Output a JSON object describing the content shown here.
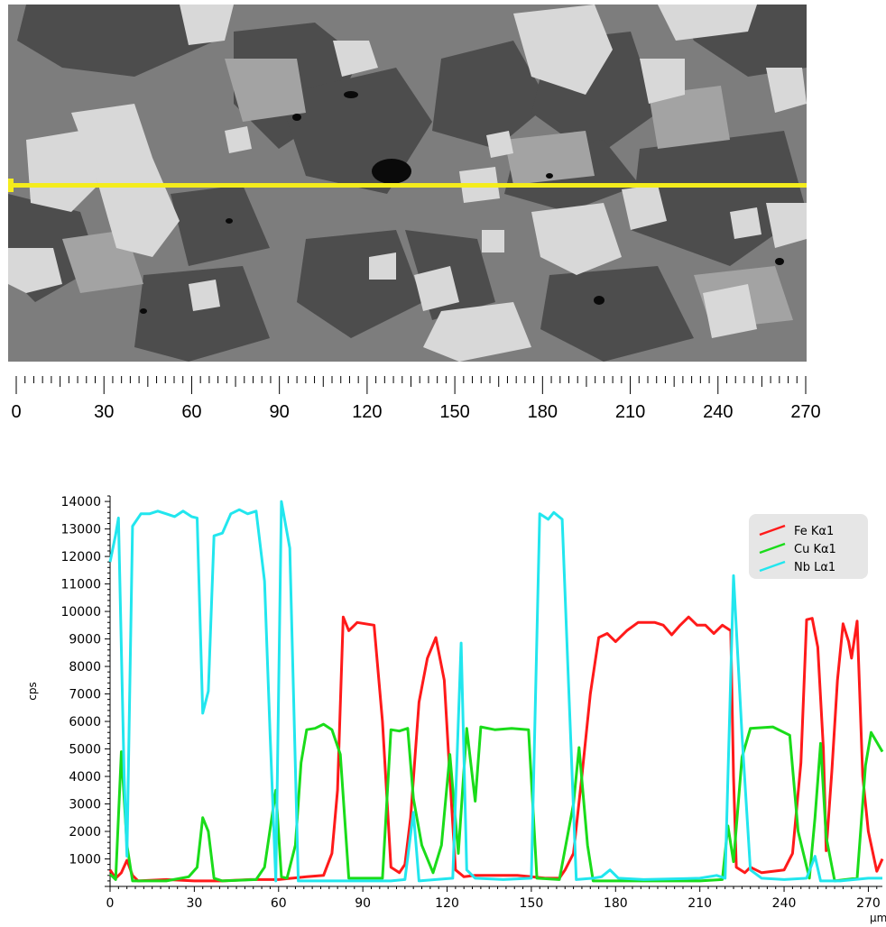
{
  "sem_image": {
    "scan_line_color": "#f4ec1c"
  },
  "scale_bar": {
    "ticks": [
      "0",
      "30",
      "60",
      "90",
      "120",
      "150",
      "180",
      "210",
      "240",
      "270"
    ]
  },
  "chart_data": {
    "type": "line",
    "xlabel": "µm",
    "ylabel": "cps",
    "xlim": [
      0,
      275
    ],
    "ylim": [
      0,
      14200
    ],
    "x_ticks": [
      0,
      30,
      60,
      90,
      120,
      150,
      180,
      210,
      240,
      270
    ],
    "y_ticks": [
      1000,
      2000,
      3000,
      4000,
      5000,
      6000,
      7000,
      8000,
      9000,
      10000,
      11000,
      12000,
      13000,
      14000
    ],
    "grid": false,
    "legend_position": "top-right",
    "series": [
      {
        "name": "Fe Kα1",
        "color": "#ff1a1a",
        "points": [
          [
            0,
            600
          ],
          [
            2,
            300
          ],
          [
            4,
            500
          ],
          [
            6,
            950
          ],
          [
            8,
            400
          ],
          [
            10,
            200
          ],
          [
            20,
            250
          ],
          [
            30,
            200
          ],
          [
            40,
            200
          ],
          [
            50,
            250
          ],
          [
            60,
            250
          ],
          [
            70,
            350
          ],
          [
            76,
            400
          ],
          [
            79,
            1200
          ],
          [
            81,
            3500
          ],
          [
            83,
            9800
          ],
          [
            85,
            9300
          ],
          [
            88,
            9600
          ],
          [
            94,
            9500
          ],
          [
            97,
            6000
          ],
          [
            100,
            700
          ],
          [
            103,
            500
          ],
          [
            105,
            800
          ],
          [
            107,
            2500
          ],
          [
            110,
            6700
          ],
          [
            113,
            8300
          ],
          [
            116,
            9050
          ],
          [
            119,
            7500
          ],
          [
            121,
            4000
          ],
          [
            123,
            600
          ],
          [
            126,
            350
          ],
          [
            130,
            400
          ],
          [
            145,
            400
          ],
          [
            150,
            350
          ],
          [
            155,
            300
          ],
          [
            160,
            300
          ],
          [
            162,
            600
          ],
          [
            165,
            1200
          ],
          [
            168,
            4000
          ],
          [
            171,
            7000
          ],
          [
            174,
            9050
          ],
          [
            177,
            9200
          ],
          [
            180,
            8900
          ],
          [
            184,
            9300
          ],
          [
            188,
            9600
          ],
          [
            194,
            9600
          ],
          [
            197,
            9500
          ],
          [
            200,
            9150
          ],
          [
            203,
            9500
          ],
          [
            206,
            9800
          ],
          [
            209,
            9500
          ],
          [
            212,
            9500
          ],
          [
            215,
            9200
          ],
          [
            218,
            9500
          ],
          [
            221,
            9300
          ],
          [
            222,
            4000
          ],
          [
            223,
            700
          ],
          [
            226,
            500
          ],
          [
            228,
            700
          ],
          [
            232,
            500
          ],
          [
            240,
            600
          ],
          [
            243,
            1200
          ],
          [
            246,
            4500
          ],
          [
            248,
            9700
          ],
          [
            250,
            9750
          ],
          [
            252,
            8700
          ],
          [
            254,
            5000
          ],
          [
            255,
            1300
          ],
          [
            257,
            4200
          ],
          [
            259,
            7500
          ],
          [
            261,
            9550
          ],
          [
            263,
            8900
          ],
          [
            264,
            8300
          ],
          [
            266,
            9650
          ],
          [
            268,
            4000
          ],
          [
            270,
            2000
          ],
          [
            273,
            550
          ],
          [
            275,
            1000
          ]
        ]
      },
      {
        "name": "Cu Kα1",
        "color": "#1adc1a",
        "points": [
          [
            0,
            450
          ],
          [
            2,
            250
          ],
          [
            4,
            4900
          ],
          [
            6,
            1500
          ],
          [
            8,
            200
          ],
          [
            20,
            200
          ],
          [
            28,
            350
          ],
          [
            31,
            700
          ],
          [
            33,
            2500
          ],
          [
            35,
            2000
          ],
          [
            37,
            300
          ],
          [
            40,
            200
          ],
          [
            52,
            250
          ],
          [
            55,
            700
          ],
          [
            59,
            3500
          ],
          [
            61,
            350
          ],
          [
            63,
            300
          ],
          [
            66,
            1500
          ],
          [
            68,
            4500
          ],
          [
            70,
            5700
          ],
          [
            73,
            5750
          ],
          [
            76,
            5900
          ],
          [
            79,
            5700
          ],
          [
            82,
            4800
          ],
          [
            85,
            300
          ],
          [
            97,
            300
          ],
          [
            100,
            5700
          ],
          [
            103,
            5650
          ],
          [
            106,
            5750
          ],
          [
            108,
            3200
          ],
          [
            111,
            1500
          ],
          [
            115,
            500
          ],
          [
            118,
            1500
          ],
          [
            121,
            4800
          ],
          [
            124,
            1200
          ],
          [
            127,
            5750
          ],
          [
            130,
            3100
          ],
          [
            132,
            5800
          ],
          [
            137,
            5700
          ],
          [
            143,
            5750
          ],
          [
            149,
            5700
          ],
          [
            152,
            300
          ],
          [
            160,
            250
          ],
          [
            165,
            3000
          ],
          [
            167,
            5050
          ],
          [
            170,
            1500
          ],
          [
            172,
            200
          ],
          [
            180,
            200
          ],
          [
            210,
            200
          ],
          [
            218,
            250
          ],
          [
            220,
            2200
          ],
          [
            222,
            900
          ],
          [
            225,
            4700
          ],
          [
            228,
            5750
          ],
          [
            236,
            5800
          ],
          [
            242,
            5500
          ],
          [
            245,
            2000
          ],
          [
            249,
            300
          ],
          [
            251,
            2500
          ],
          [
            253,
            5200
          ],
          [
            255,
            1800
          ],
          [
            258,
            200
          ],
          [
            266,
            300
          ],
          [
            269,
            4400
          ],
          [
            271,
            5600
          ],
          [
            275,
            4900
          ]
        ]
      },
      {
        "name": "Nb Lα1",
        "color": "#22e6ee",
        "points": [
          [
            0,
            11800
          ],
          [
            2,
            12800
          ],
          [
            3,
            13400
          ],
          [
            5,
            4000
          ],
          [
            6,
            1100
          ],
          [
            8,
            13100
          ],
          [
            11,
            13550
          ],
          [
            14,
            13550
          ],
          [
            17,
            13650
          ],
          [
            20,
            13550
          ],
          [
            23,
            13450
          ],
          [
            26,
            13650
          ],
          [
            29,
            13450
          ],
          [
            31,
            13400
          ],
          [
            33,
            6300
          ],
          [
            35,
            7100
          ],
          [
            37,
            12750
          ],
          [
            40,
            12850
          ],
          [
            43,
            13550
          ],
          [
            46,
            13700
          ],
          [
            49,
            13550
          ],
          [
            52,
            13650
          ],
          [
            55,
            11100
          ],
          [
            57,
            5500
          ],
          [
            59,
            200
          ],
          [
            61,
            14000
          ],
          [
            64,
            12300
          ],
          [
            67,
            200
          ],
          [
            70,
            200
          ],
          [
            100,
            200
          ],
          [
            105,
            250
          ],
          [
            108,
            2700
          ],
          [
            110,
            200
          ],
          [
            122,
            300
          ],
          [
            125,
            8850
          ],
          [
            127,
            600
          ],
          [
            130,
            300
          ],
          [
            140,
            250
          ],
          [
            150,
            300
          ],
          [
            153,
            13550
          ],
          [
            156,
            13350
          ],
          [
            158,
            13600
          ],
          [
            161,
            13350
          ],
          [
            163,
            8000
          ],
          [
            166,
            250
          ],
          [
            172,
            300
          ],
          [
            175,
            350
          ],
          [
            178,
            600
          ],
          [
            181,
            300
          ],
          [
            190,
            250
          ],
          [
            210,
            300
          ],
          [
            216,
            400
          ],
          [
            219,
            300
          ],
          [
            222,
            11300
          ],
          [
            225,
            5500
          ],
          [
            228,
            600
          ],
          [
            232,
            300
          ],
          [
            240,
            250
          ],
          [
            248,
            300
          ],
          [
            251,
            1100
          ],
          [
            253,
            200
          ],
          [
            260,
            200
          ],
          [
            270,
            300
          ],
          [
            275,
            300
          ]
        ]
      }
    ]
  }
}
